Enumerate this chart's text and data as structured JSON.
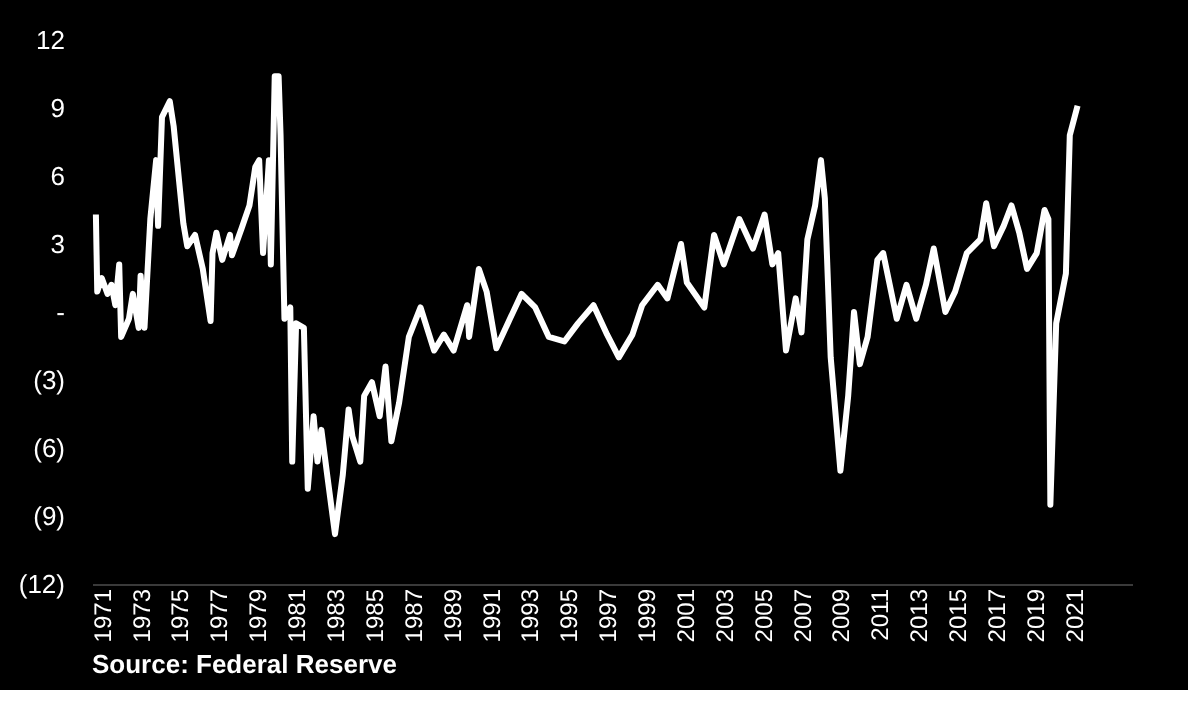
{
  "chart_data": {
    "type": "line",
    "annotations": [
      "Source: Federal Reserve"
    ],
    "x": [
      1970.7,
      1970.77,
      1971.0,
      1971.3,
      1971.5,
      1971.7,
      1971.9,
      1972.0,
      1972.4,
      1972.6,
      1972.9,
      1973.0,
      1973.2,
      1973.5,
      1973.8,
      1973.9,
      1974.1,
      1974.5,
      1974.7,
      1975.0,
      1975.2,
      1975.4,
      1975.8,
      1976.2,
      1976.6,
      1976.7,
      1976.9,
      1977.2,
      1977.6,
      1977.7,
      1978.2,
      1978.6,
      1978.9,
      1979.1,
      1979.3,
      1979.6,
      1979.7,
      1979.9,
      1980.1,
      1980.2,
      1980.4,
      1980.7,
      1980.8,
      1981.0,
      1981.4,
      1981.6,
      1981.9,
      1982.1,
      1982.3,
      1982.6,
      1983.0,
      1983.4,
      1983.7,
      1983.9,
      1984.3,
      1984.5,
      1984.9,
      1985.3,
      1985.6,
      1985.9,
      1986.3,
      1986.8,
      1987.4,
      1988.1,
      1988.6,
      1989.1,
      1989.8,
      1989.9,
      1990.4,
      1990.8,
      1991.3,
      1992.0,
      1992.6,
      1993.3,
      1994.0,
      1994.8,
      1995.5,
      1996.3,
      1997.0,
      1997.6,
      1998.3,
      1998.8,
      1999.6,
      2000.1,
      2000.8,
      2001.1,
      2002.0,
      2002.5,
      2003.0,
      2003.8,
      2004.5,
      2005.1,
      2005.5,
      2005.8,
      2006.2,
      2006.7,
      2007.0,
      2007.3,
      2007.7,
      2008.0,
      2008.2,
      2008.5,
      2009.0,
      2009.4,
      2009.7,
      2010.0,
      2010.4,
      2010.9,
      2011.2,
      2011.9,
      2012.4,
      2012.9,
      2013.4,
      2013.8,
      2014.4,
      2014.9,
      2015.5,
      2016.2,
      2016.5,
      2016.9,
      2017.4,
      2017.8,
      2018.2,
      2018.6,
      2019.1,
      2019.5,
      2019.7,
      2019.8,
      2020.1,
      2020.6,
      2020.8,
      2021.2
    ],
    "series": [
      {
        "color": "#ffffff",
        "values": [
          4.3,
          0.9,
          1.5,
          0.8,
          1.2,
          0.3,
          2.1,
          -1.1,
          -0.3,
          0.8,
          -0.7,
          1.6,
          -0.7,
          4.1,
          6.7,
          3.8,
          8.6,
          9.3,
          8.2,
          5.6,
          3.9,
          2.9,
          3.4,
          1.9,
          -0.4,
          2.6,
          3.5,
          2.3,
          3.4,
          2.5,
          3.7,
          4.7,
          6.4,
          6.7,
          2.6,
          6.7,
          2.1,
          10.4,
          10.4,
          7.8,
          -0.3,
          0.2,
          -6.6,
          -0.5,
          -0.7,
          -7.8,
          -4.6,
          -6.6,
          -5.2,
          -7.2,
          -9.8,
          -7.2,
          -4.3,
          -5.5,
          -6.6,
          -3.7,
          -3.1,
          -4.6,
          -2.4,
          -5.7,
          -4.0,
          -1.1,
          0.2,
          -1.7,
          -1.0,
          -1.7,
          0.3,
          -1.1,
          1.9,
          0.9,
          -1.6,
          -0.3,
          0.8,
          0.2,
          -1.1,
          -1.3,
          -0.5,
          0.3,
          -1.0,
          -2.0,
          -1.0,
          0.3,
          1.2,
          0.6,
          3.0,
          1.3,
          0.2,
          3.4,
          2.1,
          4.1,
          2.8,
          4.3,
          2.1,
          2.6,
          -1.7,
          0.6,
          -0.9,
          3.2,
          4.7,
          6.7,
          5.0,
          -2.0,
          -7.0,
          -3.7,
          0.0,
          -2.3,
          -1.1,
          2.3,
          2.6,
          -0.3,
          1.2,
          -0.3,
          1.2,
          2.8,
          0.0,
          0.9,
          2.6,
          3.2,
          4.8,
          2.9,
          3.8,
          4.7,
          3.5,
          1.9,
          2.6,
          4.5,
          4.1,
          -8.5,
          -0.5,
          1.7,
          7.8,
          9.1
        ]
      }
    ],
    "xlim": [
      1970.5,
      2024
    ],
    "xticks": [
      1971,
      1973,
      1975,
      1977,
      1979,
      1981,
      1983,
      1985,
      1987,
      1989,
      1991,
      1993,
      1995,
      1997,
      1999,
      2001,
      2003,
      2005,
      2007,
      2009,
      2011,
      2013,
      2015,
      2017,
      2019,
      2021
    ],
    "ylim": [
      -12,
      12
    ],
    "yticks": [
      {
        "value": -12,
        "label": "(12)"
      },
      {
        "value": -9,
        "label": "(9)"
      },
      {
        "value": -6,
        "label": "(6)"
      },
      {
        "value": -3,
        "label": "(3)"
      },
      {
        "value": 0,
        "label": "-"
      },
      3,
      6,
      9,
      12
    ],
    "grid": false,
    "legend": false,
    "marker": "none",
    "line_style": "solid"
  }
}
